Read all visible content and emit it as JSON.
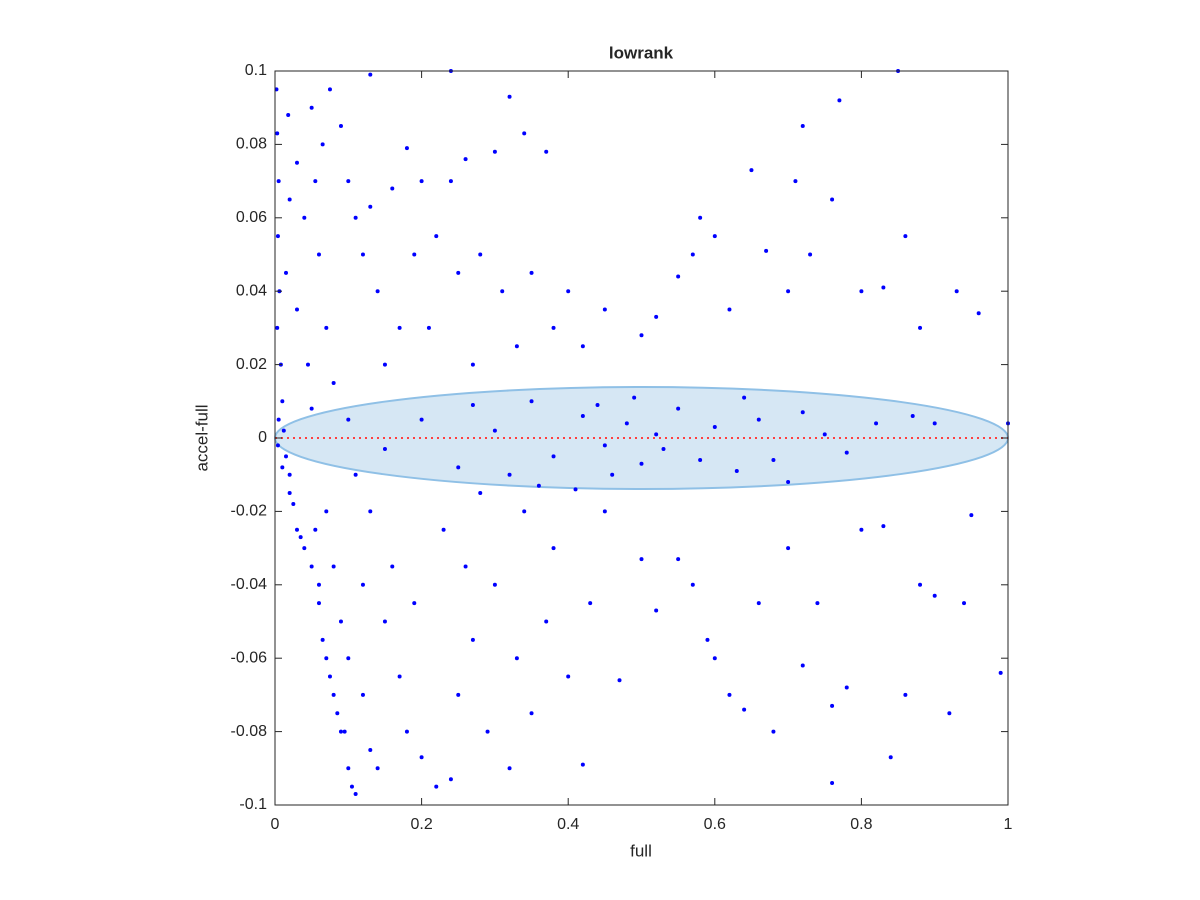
{
  "chart_data": {
    "type": "scatter",
    "title": "lowrank",
    "x_label": "full",
    "y_label": "accel-full",
    "xlim": [
      0,
      1
    ],
    "ylim": [
      -0.1,
      0.1
    ],
    "xticks": [
      0,
      0.2,
      0.4,
      0.6,
      0.8,
      1
    ],
    "yticks": [
      -0.1,
      -0.08,
      -0.06,
      -0.04,
      -0.02,
      0,
      0.02,
      0.04,
      0.06,
      0.08,
      0.1
    ],
    "reference_line": {
      "y": 0,
      "color": "#ff4040"
    },
    "ellipse": {
      "center": [
        0.5,
        0
      ],
      "rx": 0.5,
      "ry": 0.0139,
      "fill": "#d6e7f4",
      "stroke": "#8fc0e6"
    },
    "series": [
      {
        "color": "#0000ff",
        "x": [
          0.002,
          0.003,
          0.005,
          0.004,
          0.006,
          0.003,
          0.008,
          0.01,
          0.005,
          0.012,
          0.004,
          0.015,
          0.02,
          0.01,
          0.025,
          0.03,
          0.035,
          0.02,
          0.015,
          0.02,
          0.018,
          0.03,
          0.04,
          0.03,
          0.045,
          0.05,
          0.04,
          0.05,
          0.06,
          0.07,
          0.08,
          0.09,
          0.1,
          0.105,
          0.11,
          0.06,
          0.065,
          0.075,
          0.085,
          0.095,
          0.055,
          0.07,
          0.08,
          0.09,
          0.1,
          0.12,
          0.13,
          0.14,
          0.12,
          0.13,
          0.11,
          0.1,
          0.08,
          0.07,
          0.06,
          0.055,
          0.05,
          0.065,
          0.075,
          0.09,
          0.1,
          0.11,
          0.12,
          0.13,
          0.14,
          0.15,
          0.16,
          0.17,
          0.18,
          0.19,
          0.2,
          0.21,
          0.22,
          0.24,
          0.25,
          0.26,
          0.27,
          0.28,
          0.3,
          0.31,
          0.32,
          0.33,
          0.34,
          0.35,
          0.37,
          0.38,
          0.4,
          0.42,
          0.45,
          0.5,
          0.52,
          0.55,
          0.57,
          0.58,
          0.6,
          0.62,
          0.65,
          0.67,
          0.7,
          0.71,
          0.73,
          0.76,
          0.77,
          0.72,
          0.8,
          0.83,
          0.86,
          0.88,
          0.93,
          0.96,
          0.85,
          0.24,
          0.13,
          0.15,
          0.2,
          0.25,
          0.3,
          0.35,
          0.38,
          0.42,
          0.45,
          0.48,
          0.5,
          0.52,
          0.55,
          0.58,
          0.6,
          0.63,
          0.66,
          0.68,
          0.72,
          0.75,
          0.78,
          0.82,
          0.87,
          0.9,
          0.46,
          0.49,
          0.53,
          0.44,
          0.32,
          0.27,
          0.64,
          0.7,
          1.0,
          0.15,
          0.17,
          0.18,
          0.2,
          0.22,
          0.24,
          0.25,
          0.27,
          0.29,
          0.3,
          0.32,
          0.33,
          0.35,
          0.37,
          0.38,
          0.4,
          0.42,
          0.43,
          0.45,
          0.47,
          0.5,
          0.52,
          0.55,
          0.57,
          0.59,
          0.6,
          0.62,
          0.64,
          0.66,
          0.68,
          0.7,
          0.72,
          0.74,
          0.76,
          0.76,
          0.78,
          0.8,
          0.83,
          0.84,
          0.86,
          0.88,
          0.9,
          0.92,
          0.94,
          0.95,
          0.99,
          0.16,
          0.19,
          0.23,
          0.26,
          0.28,
          0.34,
          0.36,
          0.41
        ],
        "y": [
          0.095,
          0.083,
          0.07,
          0.055,
          0.04,
          0.03,
          0.02,
          0.01,
          0.005,
          0.002,
          -0.002,
          -0.005,
          -0.01,
          -0.008,
          -0.018,
          -0.025,
          -0.027,
          -0.015,
          0.045,
          0.065,
          0.088,
          0.075,
          0.06,
          0.035,
          0.02,
          0.008,
          -0.03,
          -0.035,
          -0.045,
          -0.06,
          -0.07,
          -0.08,
          -0.09,
          -0.095,
          -0.097,
          -0.04,
          -0.055,
          -0.065,
          -0.075,
          -0.08,
          -0.025,
          -0.02,
          -0.035,
          -0.05,
          -0.06,
          -0.07,
          -0.085,
          -0.09,
          -0.04,
          -0.02,
          -0.01,
          0.005,
          0.015,
          0.03,
          0.05,
          0.07,
          0.09,
          0.08,
          0.095,
          0.085,
          0.07,
          0.06,
          0.05,
          0.063,
          0.04,
          0.02,
          0.068,
          0.03,
          0.079,
          0.05,
          0.07,
          0.03,
          0.055,
          0.07,
          0.045,
          0.076,
          0.02,
          0.05,
          0.078,
          0.04,
          0.093,
          0.025,
          0.083,
          0.045,
          0.078,
          0.03,
          0.04,
          0.025,
          0.035,
          0.028,
          0.033,
          0.044,
          0.05,
          0.06,
          0.055,
          0.035,
          0.073,
          0.051,
          0.04,
          0.07,
          0.05,
          0.065,
          0.092,
          0.085,
          0.04,
          0.041,
          0.055,
          0.03,
          0.04,
          0.034,
          0.1,
          0.1,
          0.099,
          -0.003,
          0.005,
          -0.008,
          0.002,
          0.01,
          -0.005,
          0.006,
          -0.002,
          0.004,
          -0.007,
          0.001,
          0.008,
          -0.006,
          0.003,
          -0.009,
          0.005,
          -0.006,
          0.007,
          0.001,
          -0.004,
          0.004,
          0.006,
          0.004,
          -0.01,
          0.011,
          -0.003,
          0.009,
          -0.01,
          0.009,
          0.011,
          -0.012,
          0.004,
          -0.05,
          -0.065,
          -0.08,
          -0.087,
          -0.095,
          -0.093,
          -0.07,
          -0.055,
          -0.08,
          -0.04,
          -0.09,
          -0.06,
          -0.075,
          -0.05,
          -0.03,
          -0.065,
          -0.089,
          -0.045,
          -0.02,
          -0.066,
          -0.033,
          -0.047,
          -0.033,
          -0.04,
          -0.055,
          -0.06,
          -0.07,
          -0.074,
          -0.045,
          -0.08,
          -0.03,
          -0.062,
          -0.045,
          -0.073,
          -0.094,
          -0.068,
          -0.025,
          -0.024,
          -0.087,
          -0.07,
          -0.04,
          -0.043,
          -0.075,
          -0.045,
          -0.021,
          -0.064,
          -0.035,
          -0.045,
          -0.025,
          -0.035,
          -0.015,
          -0.02,
          -0.013,
          -0.014
        ]
      }
    ]
  }
}
